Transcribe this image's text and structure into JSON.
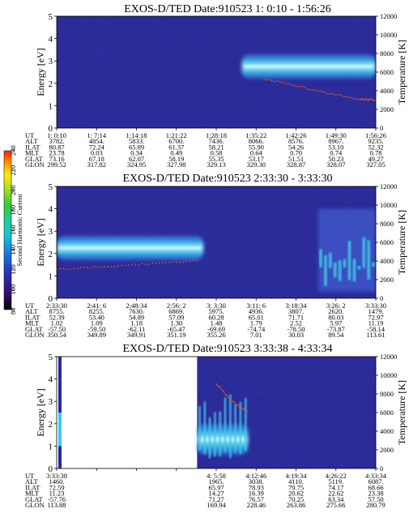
{
  "colors": {
    "background": "#2b2b9a",
    "mid": "#3a4fc0",
    "band_cyan": "#41c8e6",
    "band_core": "#b8f2ff",
    "red_points": "#d25a28",
    "colorbar": [
      "#000000",
      "#3a0a6e",
      "#2b2bb0",
      "#1a6fe0",
      "#18c0d8",
      "#1fcf9a",
      "#33cc33",
      "#a8e022",
      "#fff000",
      "#ff8a00",
      "#ff2200"
    ]
  },
  "colorbar": {
    "label": "Second Harmonic Current",
    "ticks": [
      80,
      100,
      120,
      140,
      160,
      180,
      200,
      220,
      240
    ]
  },
  "chart_data": [
    {
      "type": "heatmap",
      "title": "EXOS-D/TED   Date:910523   1: 0:10 - 1:56:26",
      "ylabel": "Energy [eV]",
      "ylabel_right": "Temperature [K]",
      "ylim": [
        0,
        5
      ],
      "yticks": [
        0,
        1,
        2,
        3,
        4,
        5
      ],
      "ylim_right": [
        0,
        12000
      ],
      "yticks_right": [
        0,
        2000,
        4000,
        6000,
        8000,
        10000,
        12000
      ],
      "band": {
        "start_frac": 0.58,
        "end_frac": 1.0,
        "energy_low": 2.2,
        "energy_high": 3.3,
        "energy_center": 2.75
      },
      "temperature_points": [
        [
          0.65,
          2.2
        ],
        [
          0.75,
          1.9
        ],
        [
          0.85,
          1.55
        ],
        [
          0.95,
          1.3
        ],
        [
          1.0,
          1.25
        ]
      ],
      "ephemeris": {
        "labels": [
          "UT",
          "ALT",
          "ILAT",
          "MLT",
          "GLAT",
          "GLON"
        ],
        "columns": [
          [
            "1: 0:10",
            "3782.",
            "80.87",
            "23.78",
            "73.16",
            "299.52"
          ],
          [
            "1: 7:14",
            "4854.",
            "72.24",
            "0.03",
            "67.18",
            "317.82"
          ],
          [
            "1:14:18",
            "5833.",
            "65.89",
            "0.34",
            "62.07",
            "324.95"
          ],
          [
            "1:21:22",
            "6700.",
            "61.37",
            "0.49",
            "58.19",
            "327.98"
          ],
          [
            "1:28:18",
            "7436.",
            "58.21",
            "0.58",
            "55.35",
            "329.13"
          ],
          [
            "1:35:22",
            "8066.",
            "55.90",
            "0.64",
            "53.17",
            "329.30"
          ],
          [
            "1:42:26",
            "8576.",
            "54.26",
            "0.70",
            "51.51",
            "328.87"
          ],
          [
            "1:49:30",
            "8967.",
            "53.10",
            "0.74",
            "50.23",
            "328.07"
          ],
          [
            "1:56:26",
            "9235.",
            "52.32",
            "0.78",
            "49.27",
            "327.05"
          ]
        ]
      }
    },
    {
      "type": "heatmap",
      "title": "EXOS-D/TED   Date:910523   2:33:30 - 3:33:30",
      "ylabel": "Energy [eV]",
      "ylabel_right": "Temperature [K]",
      "ylim": [
        0,
        5
      ],
      "yticks": [
        0,
        1,
        2,
        3,
        4,
        5
      ],
      "ylim_right": [
        0,
        12000
      ],
      "yticks_right": [
        0,
        2000,
        4000,
        6000,
        8000,
        10000,
        12000
      ],
      "band": {
        "start_frac": 0.0,
        "end_frac": 0.46,
        "energy_low": 1.7,
        "energy_high": 2.8,
        "energy_center": 2.25
      },
      "second_region": {
        "start_frac": 0.82,
        "end_frac": 1.0,
        "energy_low": 0.3,
        "energy_high": 4.0
      },
      "temperature_points": [
        [
          0.0,
          1.3
        ],
        [
          0.15,
          1.4
        ],
        [
          0.3,
          1.55
        ],
        [
          0.45,
          1.7
        ]
      ],
      "ephemeris": {
        "labels": [
          "UT",
          "ALT",
          "ILAT",
          "MLT",
          "GLAT",
          "GLON"
        ],
        "columns": [
          [
            "2:33:30",
            "8755.",
            "52.39",
            "1.02",
            "-57.50",
            "350.54"
          ],
          [
            "2:41: 6",
            "8255.",
            "53.40",
            "1.09",
            "-59.50",
            "349.89"
          ],
          [
            "2:48:34",
            "7630.",
            "54.89",
            "1.18",
            "-62.11",
            "349.91"
          ],
          [
            "2:56: 2",
            "6869.",
            "57.09",
            "1.30",
            "-65.47",
            "351.19"
          ],
          [
            "3: 3:30",
            "5975.",
            "60.28",
            "1.48",
            "-69.69",
            "355.26"
          ],
          [
            "3:11: 6",
            "4936.",
            "65.01",
            "1.79",
            "-74.74",
            "7.01"
          ],
          [
            "3:18:34",
            "3807.",
            "71.71",
            "2.52",
            "-78.50",
            "30.03"
          ],
          [
            "3:26: 2",
            "2620.",
            "80.03",
            "5.97",
            "-73.87",
            "89.54"
          ],
          [
            "3:33:30",
            "1479.",
            "72.97",
            "11.19",
            "-58.14",
            "113.61"
          ]
        ]
      }
    },
    {
      "type": "heatmap",
      "title": "EXOS-D/TED   Date:910523   3:33:38 - 4:33:34",
      "ylabel": "Energy [eV]",
      "ylabel_right": "Temperature [K]",
      "ylim": [
        0,
        5
      ],
      "yticks": [
        0,
        1,
        2,
        3,
        4,
        5
      ],
      "ylim_right": [
        0,
        12000
      ],
      "yticks_right": [
        0,
        2000,
        4000,
        6000,
        8000,
        10000,
        12000
      ],
      "data_start_frac": 0.44,
      "band": {
        "start_frac": 0.44,
        "end_frac": 0.6,
        "energy_low": 0.6,
        "energy_high": 2.0,
        "energy_center": 1.3
      },
      "temperature_points": [
        [
          0.5,
          3.8
        ],
        [
          0.55,
          3.0
        ],
        [
          0.6,
          2.5
        ]
      ],
      "ephemeris": {
        "labels": [
          "UT",
          "ALT",
          "ILAT",
          "MLT",
          "GLAT",
          "GLON"
        ],
        "columns": [
          [
            "3:33:38",
            "1460.",
            "72.59",
            "11.23",
            "-57.76",
            "113.88"
          ],
          null,
          null,
          null,
          [
            "4: 5:58",
            "1965.",
            "65.97",
            "14.27",
            "71.27",
            "169.94"
          ],
          [
            "4:12:46",
            "3038.",
            "78.93",
            "16.39",
            "76.57",
            "228.46"
          ],
          [
            "4:19:34",
            "4110.",
            "79.75",
            "20.62",
            "70.25",
            "263.86"
          ],
          [
            "4:26:22",
            "5119.",
            "74.17",
            "22.62",
            "63.34",
            "275.66"
          ],
          [
            "4:33:34",
            "6087.",
            "68.66",
            "23.38",
            "57.50",
            "280.79"
          ]
        ]
      }
    }
  ]
}
